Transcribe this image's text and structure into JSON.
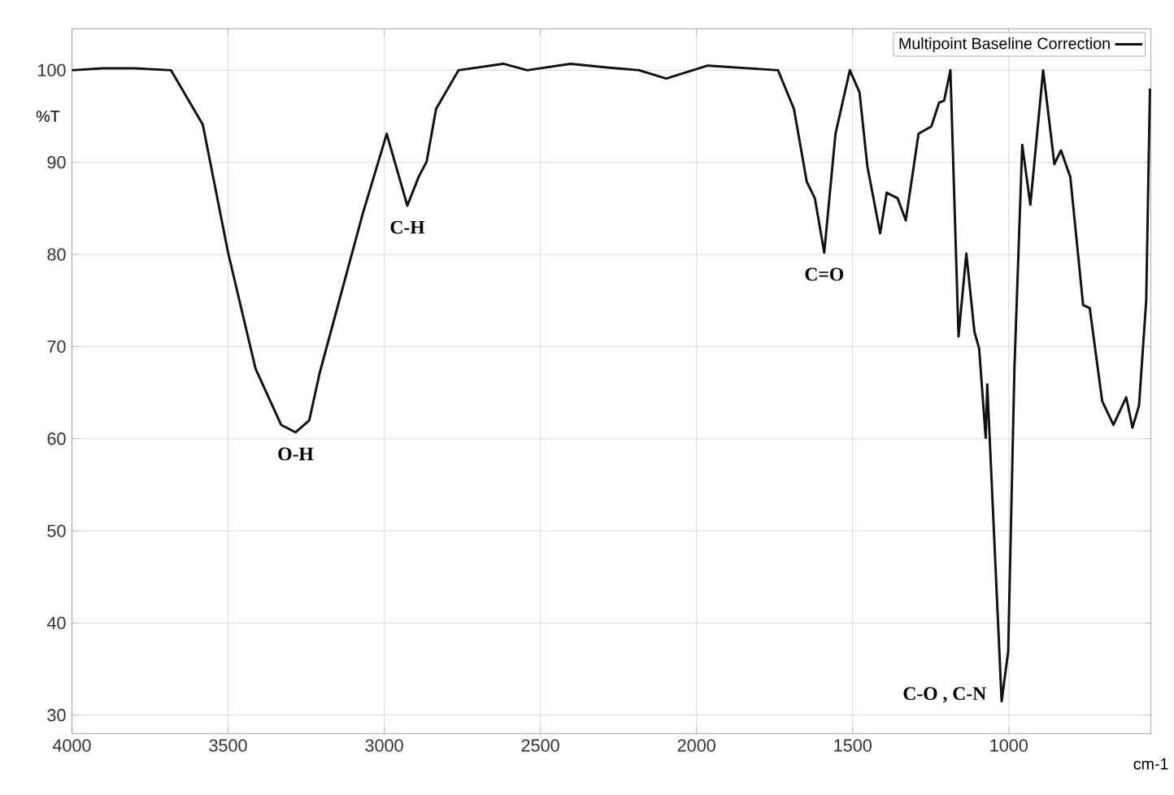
{
  "chart_data": {
    "type": "line",
    "xlabel": "cm-1",
    "ylabel": "%T",
    "xlim": [
      4000,
      545
    ],
    "ylim": [
      28,
      104.5
    ],
    "xticks": [
      4000,
      3500,
      3000,
      2500,
      2000,
      1500,
      1000
    ],
    "yticks": [
      30,
      40,
      50,
      60,
      70,
      80,
      90,
      100
    ],
    "grid": true,
    "legend": "top right",
    "marker": "none",
    "line_style": "solid",
    "series": [
      {
        "name": "Multipoint Baseline Correction",
        "color": "#111111",
        "x": [
          4000,
          3900,
          3800,
          3683,
          3581,
          3500,
          3412,
          3330,
          3284,
          3240,
          3207,
          3069,
          2992,
          2926,
          2890,
          2864,
          2834,
          2762,
          2619,
          2542,
          2404,
          2287,
          2184,
          2097,
          1964,
          1739,
          1688,
          1647,
          1621,
          1591,
          1555,
          1509,
          1478,
          1453,
          1412,
          1391,
          1356,
          1330,
          1289,
          1248,
          1223,
          1207,
          1187,
          1161,
          1136,
          1110,
          1095,
          1074,
          1069,
          1023,
          1002,
          982,
          957,
          931,
          890,
          854,
          833,
          803,
          762,
          741,
          701,
          665,
          624,
          604,
          583,
          560,
          548
        ],
        "values": [
          100,
          100.2,
          100.2,
          100,
          94.1,
          80.2,
          67.6,
          61.5,
          60.7,
          62,
          67.1,
          84.4,
          93.1,
          85.3,
          88.4,
          90.1,
          95.8,
          100,
          100.7,
          100,
          100.7,
          100.3,
          100,
          99.1,
          100.5,
          100,
          95.8,
          87.9,
          86.1,
          80.2,
          93.1,
          100,
          97.6,
          89.6,
          82.3,
          86.7,
          86.1,
          83.7,
          93.1,
          93.9,
          96.5,
          96.7,
          100,
          71.1,
          80.1,
          71.6,
          69.8,
          60.1,
          65.9,
          31.5,
          36.9,
          67.6,
          91.9,
          85.4,
          100,
          89.8,
          91.3,
          88.4,
          74.5,
          74.2,
          64.1,
          61.5,
          64.5,
          61.2,
          63.6,
          75,
          98
        ]
      }
    ],
    "annotations": [
      {
        "text": "O-H",
        "x": 3284,
        "y": 60.7
      },
      {
        "text": "C-H",
        "x": 2926,
        "y": 85.3
      },
      {
        "text": "C=O",
        "x": 1591,
        "y": 80.2
      },
      {
        "text": "C-O , C-N",
        "x": 1023,
        "y": 31.5
      }
    ]
  }
}
